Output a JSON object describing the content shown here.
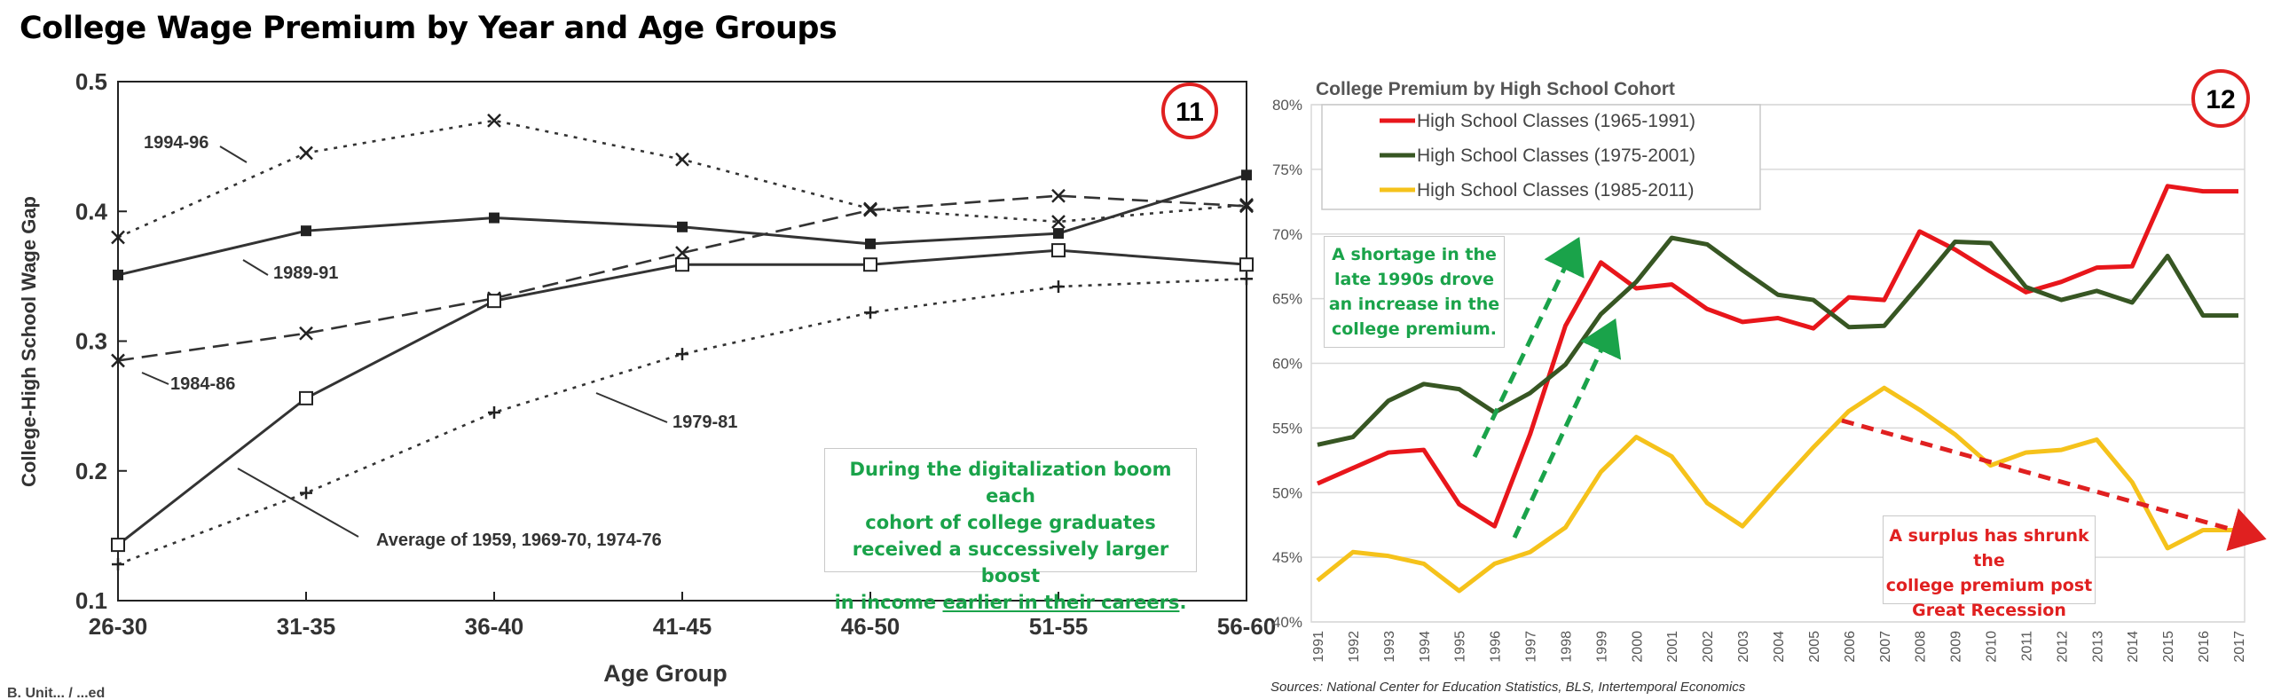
{
  "page_title": "College Wage Premium by Year and Age Groups",
  "chart_data": [
    {
      "type": "line",
      "badge": "11",
      "xlabel": "Age Group",
      "ylabel": "College-High School Wage Gap",
      "categories": [
        "26-30",
        "31-35",
        "36-40",
        "41-45",
        "46-50",
        "51-55",
        "56-60"
      ],
      "yticks": [
        "0.1",
        "0.2",
        "0.3",
        "0.4",
        "0.5"
      ],
      "ylim": [
        0.1,
        0.5
      ],
      "grid": false,
      "series": [
        {
          "name": "1994-96",
          "marker": "x",
          "style": "dotted",
          "values": [
            0.38,
            0.445,
            0.47,
            0.44,
            0.402,
            0.392,
            0.405
          ]
        },
        {
          "name": "1989-91",
          "marker": "filled-square",
          "style": "solid",
          "values": [
            0.351,
            0.385,
            0.395,
            0.388,
            0.375,
            0.383,
            0.428
          ]
        },
        {
          "name": "1984-86",
          "marker": "x",
          "style": "dashed",
          "values": [
            0.285,
            0.306,
            0.333,
            0.368,
            0.401,
            0.412,
            0.404
          ]
        },
        {
          "name": "1979-81",
          "marker": "plus",
          "style": "dotted",
          "values": [
            0.128,
            0.183,
            0.245,
            0.29,
            0.322,
            0.342,
            0.348
          ]
        },
        {
          "name": "Average of 1959, 1969-70, 1974-76",
          "marker": "open-square",
          "style": "solid",
          "values": [
            0.143,
            0.256,
            0.331,
            0.359,
            0.359,
            0.37,
            0.359
          ]
        }
      ],
      "annotation": {
        "line1": "During the digitalization boom each",
        "line2": "cohort of college graduates",
        "line3": "received a successively larger boost",
        "line4_pre": "in income ",
        "line4_underlined": "earlier in their careers",
        "line4_post": ".",
        "color": "#1aa34a"
      },
      "footer_fragment": "B. Unit... / ...ed"
    },
    {
      "type": "line",
      "badge": "12",
      "title": "College Premium by High School Cohort",
      "x": [
        1991,
        1992,
        1993,
        1994,
        1995,
        1996,
        1997,
        1998,
        1999,
        2000,
        2001,
        2002,
        2003,
        2004,
        2005,
        2006,
        2007,
        2008,
        2009,
        2010,
        2011,
        2012,
        2013,
        2014,
        2015,
        2016,
        2017
      ],
      "yticks": [
        "40%",
        "45%",
        "50%",
        "55%",
        "60%",
        "65%",
        "70%",
        "75%",
        "80%"
      ],
      "ylim": [
        40,
        80
      ],
      "grid": true,
      "legend_position": "top-left",
      "series": [
        {
          "name": "High School Classes (1965-1991)",
          "color": "#e8161b",
          "values": [
            50.7,
            51.9,
            53.1,
            53.3,
            49.1,
            47.4,
            54.5,
            62.9,
            67.8,
            65.8,
            66.1,
            64.2,
            63.2,
            63.5,
            62.7,
            65.1,
            64.9,
            70.2,
            68.8,
            67.1,
            65.5,
            66.3,
            67.4,
            67.5,
            73.7,
            73.3,
            73.3
          ]
        },
        {
          "name": "High School Classes (1975-2001)",
          "color": "#375623",
          "values": [
            53.7,
            54.3,
            57.1,
            58.4,
            58.0,
            56.2,
            57.7,
            59.9,
            63.8,
            66.3,
            69.7,
            69.2,
            67.2,
            65.3,
            64.9,
            62.8,
            62.9,
            66.1,
            69.4,
            69.3,
            65.9,
            64.9,
            65.6,
            64.7,
            68.3,
            63.7,
            63.7
          ]
        },
        {
          "name": "High School Classes (1985-2011)",
          "color": "#f5c21b",
          "values": [
            43.2,
            45.4,
            45.1,
            44.5,
            42.4,
            44.5,
            45.4,
            47.3,
            51.6,
            54.3,
            52.8,
            49.2,
            47.4,
            50.5,
            53.5,
            56.3,
            58.1,
            56.4,
            54.5,
            52.1,
            53.1,
            53.3,
            54.1,
            50.8,
            45.7,
            47.1,
            47.1
          ]
        }
      ],
      "annotation_green": {
        "line1": "A shortage in the",
        "line2": "late 1990s drove",
        "line3": "an increase in the",
        "line4": "college premium."
      },
      "annotation_red": {
        "line1": "A surplus has shrunk the",
        "line2": "college premium post",
        "line3": "Great Recession"
      },
      "source": "Sources: National Center for Education Statistics, BLS, Intertemporal Economics",
      "colors": {
        "arrow_green": "#1aa34a",
        "arrow_red": "#e02020",
        "badge_ring": "#e02020"
      }
    }
  ]
}
